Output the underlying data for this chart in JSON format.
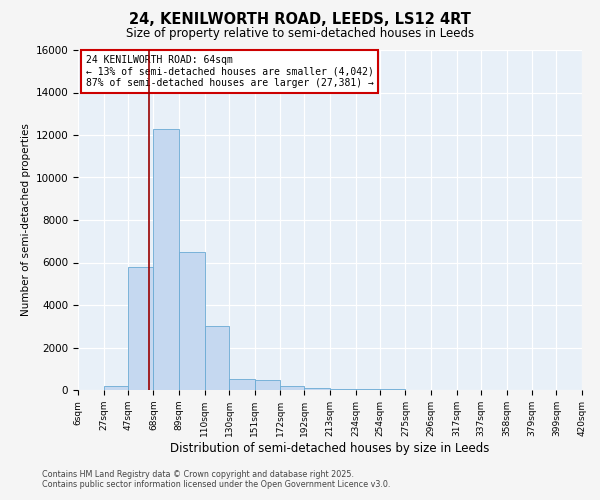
{
  "title": "24, KENILWORTH ROAD, LEEDS, LS12 4RT",
  "subtitle": "Size of property relative to semi-detached houses in Leeds",
  "xlabel": "Distribution of semi-detached houses by size in Leeds",
  "ylabel": "Number of semi-detached properties",
  "bin_edges": [
    6,
    27,
    47,
    68,
    89,
    110,
    130,
    151,
    172,
    192,
    213,
    234,
    254,
    275,
    296,
    317,
    337,
    358,
    379,
    399,
    420
  ],
  "bar_heights": [
    0,
    180,
    5800,
    12300,
    6500,
    3000,
    500,
    450,
    200,
    100,
    60,
    30,
    30,
    20,
    15,
    10,
    5,
    5,
    3,
    2
  ],
  "bar_color": "#c5d8f0",
  "bar_edgecolor": "#6aaad4",
  "vline_x": 64,
  "vline_color": "#990000",
  "annotation_title": "24 KENILWORTH ROAD: 64sqm",
  "annotation_line1": "← 13% of semi-detached houses are smaller (4,042)",
  "annotation_line2": "87% of semi-detached houses are larger (27,381) →",
  "annotation_box_edgecolor": "#cc0000",
  "ylim": [
    0,
    16000
  ],
  "yticks": [
    0,
    2000,
    4000,
    6000,
    8000,
    10000,
    12000,
    14000,
    16000
  ],
  "tick_labels": [
    "6sqm",
    "27sqm",
    "47sqm",
    "68sqm",
    "89sqm",
    "110sqm",
    "130sqm",
    "151sqm",
    "172sqm",
    "192sqm",
    "213sqm",
    "234sqm",
    "254sqm",
    "275sqm",
    "296sqm",
    "317sqm",
    "337sqm",
    "358sqm",
    "379sqm",
    "399sqm",
    "420sqm"
  ],
  "footer_line1": "Contains HM Land Registry data © Crown copyright and database right 2025.",
  "footer_line2": "Contains public sector information licensed under the Open Government Licence v3.0.",
  "bg_color": "#e8f0f8",
  "fig_bg_color": "#f5f5f5",
  "grid_color": "#ffffff"
}
